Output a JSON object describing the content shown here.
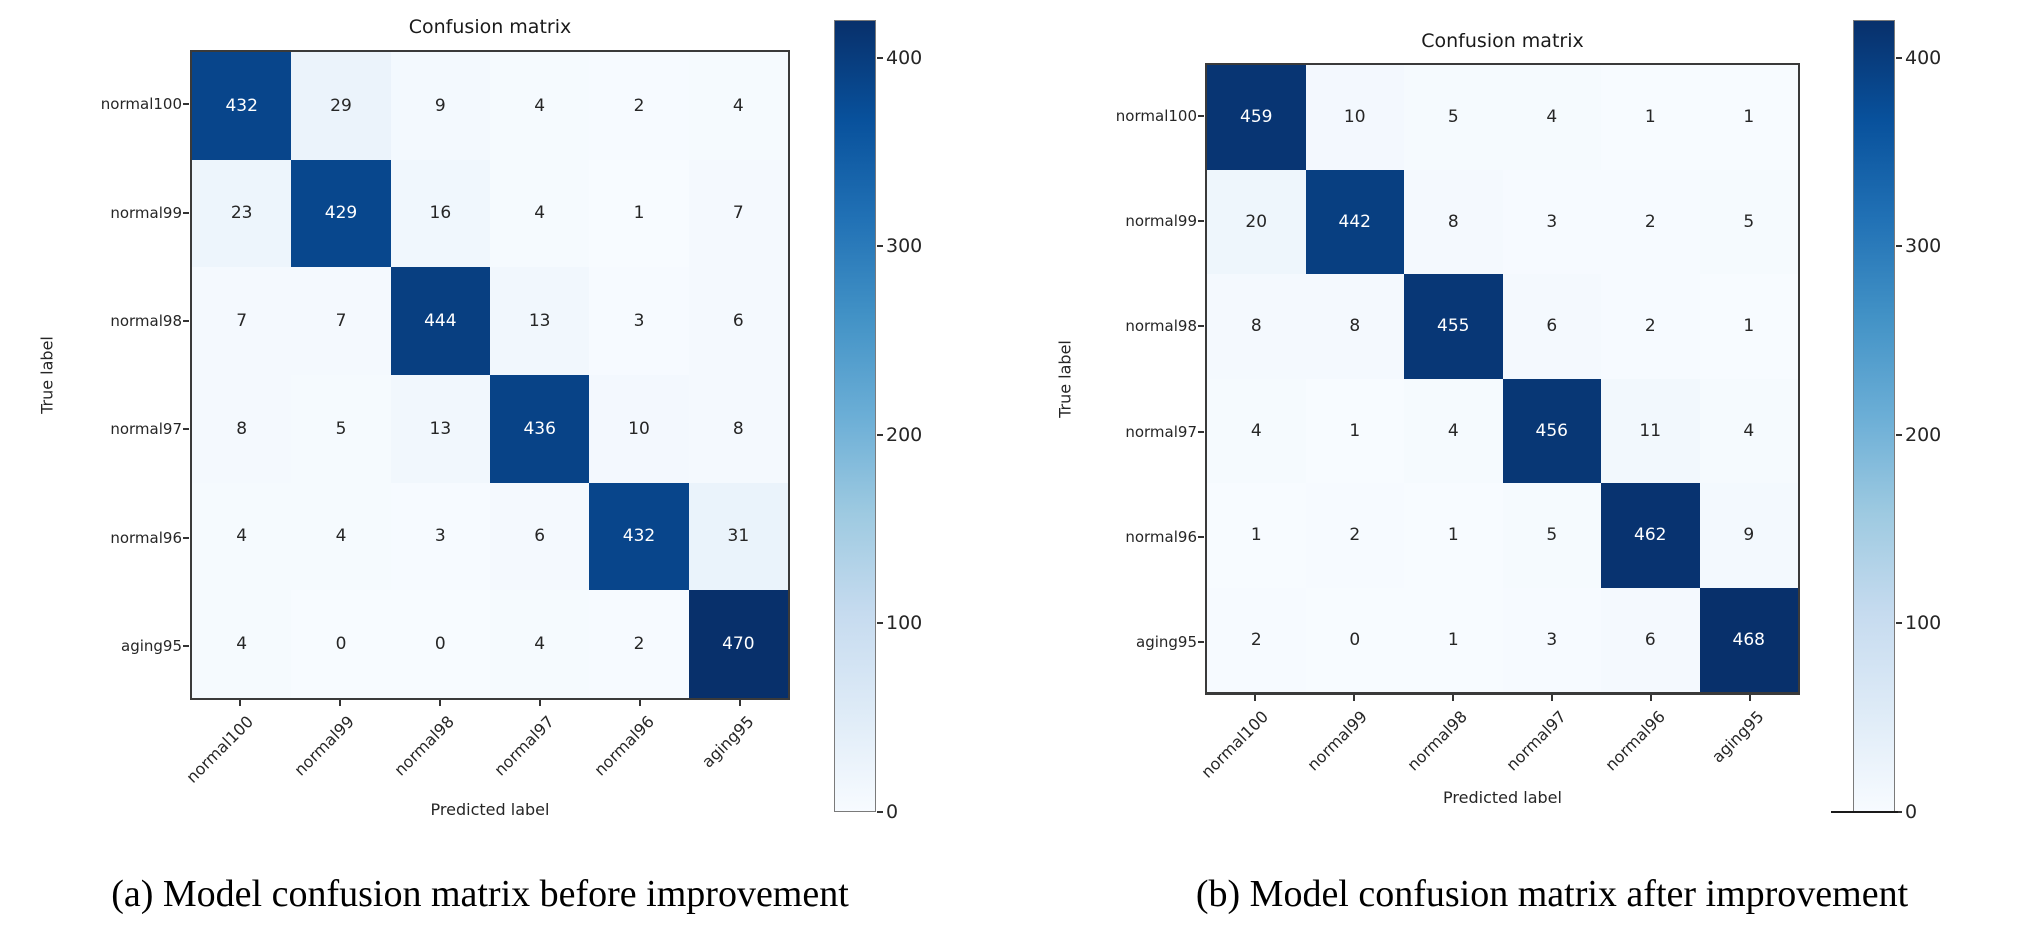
{
  "page": {
    "background": "#ffffff"
  },
  "chart_data": [
    {
      "type": "heatmap",
      "title": "Confusion matrix",
      "xlabel": "Predicted label",
      "ylabel": "True label",
      "caption": "(a) Model confusion matrix before improvement",
      "categories": [
        "normal100",
        "normal99",
        "normal98",
        "normal97",
        "normal96",
        "aging95"
      ],
      "matrix": [
        [
          432,
          29,
          9,
          4,
          2,
          4
        ],
        [
          23,
          429,
          16,
          4,
          1,
          7
        ],
        [
          7,
          7,
          444,
          13,
          3,
          6
        ],
        [
          8,
          5,
          13,
          436,
          10,
          8
        ],
        [
          4,
          4,
          3,
          6,
          432,
          31
        ],
        [
          4,
          0,
          0,
          4,
          2,
          470
        ]
      ],
      "colorbar_ticks": [
        400,
        300,
        200,
        100,
        0
      ],
      "vmin": 0,
      "vmax": 470,
      "grid": false,
      "colorbar_position": "right"
    },
    {
      "type": "heatmap",
      "title": "Confusion matrix",
      "xlabel": "Predicted label",
      "ylabel": "True label",
      "caption": "(b) Model confusion matrix after improvement",
      "categories": [
        "normal100",
        "normal99",
        "normal98",
        "normal97",
        "normal96",
        "aging95"
      ],
      "matrix": [
        [
          459,
          10,
          5,
          4,
          1,
          1
        ],
        [
          20,
          442,
          8,
          3,
          2,
          5
        ],
        [
          8,
          8,
          455,
          6,
          2,
          1
        ],
        [
          4,
          1,
          4,
          456,
          11,
          4
        ],
        [
          1,
          2,
          1,
          5,
          462,
          9
        ],
        [
          2,
          0,
          1,
          3,
          6,
          468
        ]
      ],
      "colorbar_ticks": [
        400,
        300,
        200,
        100,
        0
      ],
      "vmin": 0,
      "vmax": 468,
      "grid": false,
      "colorbar_position": "right"
    }
  ],
  "colors": {
    "colormap_name": "Blues",
    "cmap_stops": [
      "#f7fbff",
      "#deebf7",
      "#c6dbef",
      "#9ecae1",
      "#6baed6",
      "#4292c6",
      "#2171b5",
      "#08519c",
      "#08306b"
    ],
    "cell_text_dark": "#262626",
    "cell_text_light": "#ffffff",
    "axis_spine": "#3a3a3a",
    "tick_color": "#333333",
    "caption_color": "#000000"
  }
}
